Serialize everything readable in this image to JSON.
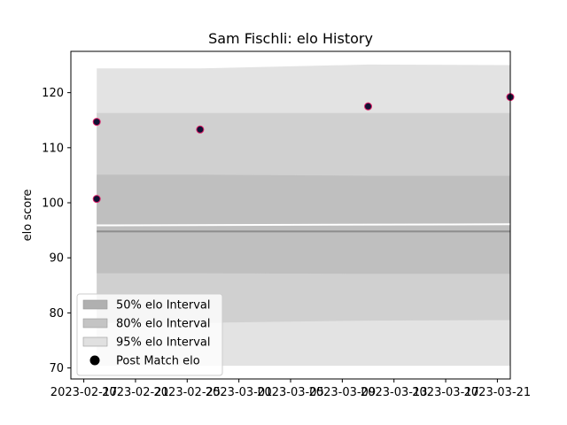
{
  "chart_data": {
    "type": "scatter",
    "title": "Sam Fischli: elo History",
    "xlabel": "",
    "ylabel": "elo score",
    "xlim": [
      "2023-02-16",
      "2023-03-22"
    ],
    "ylim": [
      68,
      127.5
    ],
    "x_ticks": [
      "2023-02-17",
      "2023-02-21",
      "2023-02-25",
      "2023-03-01",
      "2023-03-05",
      "2023-03-09",
      "2023-03-13",
      "2023-03-17",
      "2023-03-21"
    ],
    "y_ticks": [
      "70",
      "80",
      "90",
      "100",
      "110",
      "120"
    ],
    "grid": false,
    "legend_position": "lower-left",
    "series": [
      {
        "name": "Post Match elo",
        "kind": "points",
        "color": "#111133",
        "edge_color": "#e0206a",
        "points": [
          {
            "x": "2023-02-18",
            "y": 100.7
          },
          {
            "x": "2023-02-18",
            "y": 114.7
          },
          {
            "x": "2023-02-26",
            "y": 113.3
          },
          {
            "x": "2023-03-11",
            "y": 117.5
          },
          {
            "x": "2023-03-22",
            "y": 119.2
          }
        ]
      }
    ],
    "intervals": [
      {
        "name": "95% elo Interval",
        "color": "#e3e3e3",
        "upper": [
          {
            "x": "2023-02-18",
            "y": 124.4
          },
          {
            "x": "2023-02-26",
            "y": 124.4
          },
          {
            "x": "2023-03-11",
            "y": 125.1
          },
          {
            "x": "2023-03-22",
            "y": 125.0
          }
        ],
        "lower": [
          {
            "x": "2023-02-18",
            "y": 70.4
          },
          {
            "x": "2023-02-26",
            "y": 70.4
          },
          {
            "x": "2023-03-11",
            "y": 70.4
          },
          {
            "x": "2023-03-22",
            "y": 70.4
          }
        ]
      },
      {
        "name": "80% elo Interval",
        "color": "#d0d0d0",
        "upper": [
          {
            "x": "2023-02-18",
            "y": 116.3
          },
          {
            "x": "2023-02-26",
            "y": 116.3
          },
          {
            "x": "2023-03-11",
            "y": 116.3
          },
          {
            "x": "2023-03-22",
            "y": 116.3
          }
        ],
        "lower": [
          {
            "x": "2023-02-18",
            "y": 78.2
          },
          {
            "x": "2023-02-26",
            "y": 78.2
          },
          {
            "x": "2023-03-11",
            "y": 78.6
          },
          {
            "x": "2023-03-22",
            "y": 78.7
          }
        ]
      },
      {
        "name": "50% elo Interval",
        "color": "#bfbfbf",
        "upper": [
          {
            "x": "2023-02-18",
            "y": 105.1
          },
          {
            "x": "2023-02-26",
            "y": 105.1
          },
          {
            "x": "2023-03-11",
            "y": 104.9
          },
          {
            "x": "2023-03-22",
            "y": 104.9
          }
        ],
        "lower": [
          {
            "x": "2023-02-18",
            "y": 87.2
          },
          {
            "x": "2023-02-26",
            "y": 87.2
          },
          {
            "x": "2023-03-11",
            "y": 87.1
          },
          {
            "x": "2023-03-22",
            "y": 87.1
          }
        ]
      }
    ],
    "band_gap": [
      {
        "x": "2023-02-18",
        "y": 95.9
      },
      {
        "x": "2023-03-22",
        "y": 96.1
      }
    ],
    "center_line": [
      {
        "x": "2023-02-18",
        "y": 94.8
      },
      {
        "x": "2023-03-22",
        "y": 94.8
      }
    ],
    "legend": [
      {
        "label": "50% elo Interval",
        "kind": "patch",
        "color": "#b0b0b0"
      },
      {
        "label": "80% elo Interval",
        "kind": "patch",
        "color": "#c4c4c4"
      },
      {
        "label": "95% elo Interval",
        "kind": "patch",
        "color": "#e0e0e0"
      },
      {
        "label": "Post Match elo",
        "kind": "marker",
        "color": "#000000"
      }
    ]
  }
}
